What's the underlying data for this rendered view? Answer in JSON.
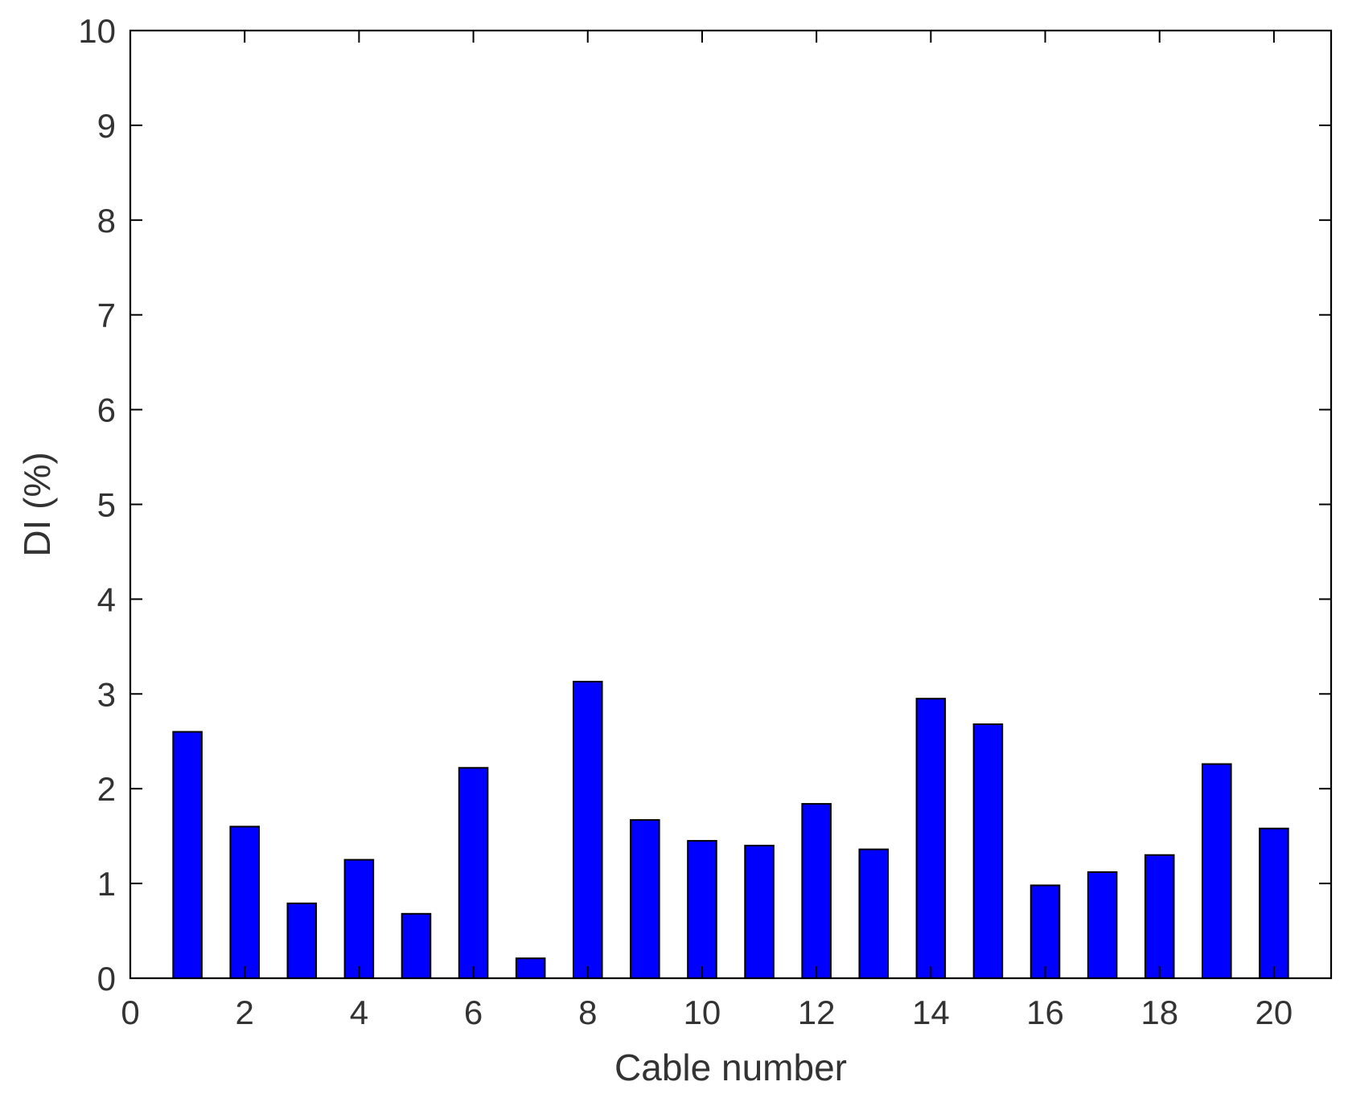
{
  "chart_data": {
    "type": "bar",
    "title": "",
    "xlabel": "Cable number",
    "ylabel": "DI (%)",
    "x": [
      1,
      2,
      3,
      4,
      5,
      6,
      7,
      8,
      9,
      10,
      11,
      12,
      13,
      14,
      15,
      16,
      17,
      18,
      19,
      20
    ],
    "values": [
      2.6,
      1.6,
      0.79,
      1.25,
      0.68,
      2.22,
      0.21,
      3.13,
      1.67,
      1.45,
      1.4,
      1.84,
      1.36,
      2.95,
      2.68,
      0.98,
      1.12,
      1.3,
      2.26,
      1.58
    ],
    "xlim": [
      0,
      21
    ],
    "ylim": [
      0,
      10
    ],
    "xticks": [
      0,
      2,
      4,
      6,
      8,
      10,
      12,
      14,
      16,
      18,
      20
    ],
    "yticks": [
      0,
      1,
      2,
      3,
      4,
      5,
      6,
      7,
      8,
      9,
      10
    ],
    "grid": false,
    "legend": "none",
    "bar_color": "#0000FF",
    "edge_color": "#000000"
  }
}
